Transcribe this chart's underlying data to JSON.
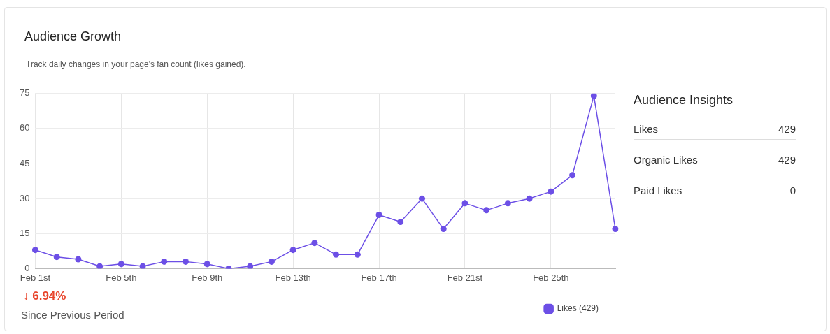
{
  "chart_data": {
    "type": "line",
    "title": "Audience Growth",
    "subtitle": "Track daily changes in your page's fan count (likes gained).",
    "categories": [
      "Feb 1st",
      null,
      null,
      null,
      "Feb 5th",
      null,
      null,
      null,
      "Feb 9th",
      null,
      null,
      null,
      "Feb 13th",
      null,
      null,
      null,
      "Feb 17th",
      null,
      null,
      null,
      "Feb 21st",
      null,
      null,
      null,
      "Feb 25th",
      null,
      null,
      null
    ],
    "series": [
      {
        "name": "Likes (429)",
        "color": "#6c4fe6",
        "values": [
          8,
          5,
          4,
          1,
          2,
          1,
          3,
          3,
          2,
          0,
          1,
          3,
          8,
          11,
          6,
          6,
          23,
          20,
          30,
          17,
          28,
          25,
          28,
          30,
          33,
          40,
          74,
          17
        ]
      }
    ],
    "ylim": [
      0,
      75
    ],
    "yticks": [
      0,
      15,
      30,
      45,
      60,
      75
    ],
    "grid": true,
    "legend": "bottom right",
    "marker": "circle",
    "line_style": "solid",
    "annotations": [
      "Audience Insights",
      "Likes",
      "429",
      "Organic Likes",
      "429",
      "Paid Likes",
      "0",
      "↓ 6.94%",
      "Since Previous Period"
    ]
  }
}
